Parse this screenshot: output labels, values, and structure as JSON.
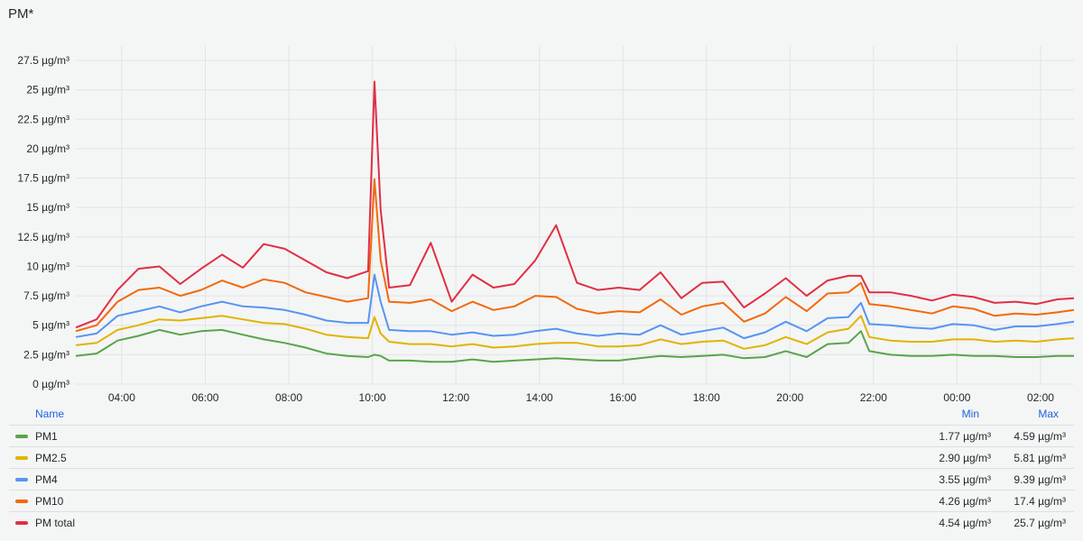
{
  "panel": {
    "title": "PM*"
  },
  "legend": {
    "header": {
      "name": "Name",
      "min": "Min",
      "max": "Max"
    },
    "rows": [
      {
        "label": "PM1",
        "color": "#56a64b",
        "min": "1.77 µg/m³",
        "max": "4.59 µg/m³"
      },
      {
        "label": "PM2.5",
        "color": "#e0b400",
        "min": "2.90 µg/m³",
        "max": "5.81 µg/m³"
      },
      {
        "label": "PM4",
        "color": "#5794f2",
        "min": "3.55 µg/m³",
        "max": "9.39 µg/m³"
      },
      {
        "label": "PM10",
        "color": "#f2690a",
        "min": "4.26 µg/m³",
        "max": "17.4 µg/m³"
      },
      {
        "label": "PM total",
        "color": "#e02f44",
        "min": "4.54 µg/m³",
        "max": "25.7 µg/m³"
      }
    ]
  },
  "chart_data": {
    "type": "line",
    "title": "PM*",
    "xlabel": "",
    "ylabel": "",
    "y_unit": "µg/m³",
    "ylim": [
      0,
      27.5
    ],
    "yticks": [
      "0 µg/m³",
      "2.5 µg/m³",
      "5 µg/m³",
      "7.5 µg/m³",
      "10 µg/m³",
      "12.5 µg/m³",
      "15 µg/m³",
      "17.5 µg/m³",
      "20 µg/m³",
      "22.5 µg/m³",
      "25 µg/m³",
      "27.5 µg/m³"
    ],
    "xlim": [
      2.9,
      26.8
    ],
    "xticks": [
      "04:00",
      "06:00",
      "08:00",
      "10:00",
      "12:00",
      "14:00",
      "16:00",
      "18:00",
      "20:00",
      "22:00",
      "00:00",
      "02:00"
    ],
    "grid": true,
    "legend": "bottom",
    "x": [
      2.9,
      3.4,
      3.9,
      4.4,
      4.9,
      5.4,
      5.9,
      6.4,
      6.9,
      7.4,
      7.9,
      8.4,
      8.9,
      9.4,
      9.9,
      10.05,
      10.2,
      10.4,
      10.9,
      11.4,
      11.9,
      12.4,
      12.9,
      13.4,
      13.9,
      14.4,
      14.9,
      15.4,
      15.9,
      16.4,
      16.9,
      17.4,
      17.9,
      18.4,
      18.9,
      19.4,
      19.9,
      20.4,
      20.9,
      21.4,
      21.7,
      21.9,
      22.4,
      22.9,
      23.4,
      23.9,
      24.4,
      24.9,
      25.4,
      25.9,
      26.4,
      26.8
    ],
    "series": [
      {
        "name": "PM1",
        "color": "#56a64b",
        "values": [
          2.4,
          2.6,
          3.7,
          4.1,
          4.6,
          4.2,
          4.5,
          4.6,
          4.2,
          3.8,
          3.5,
          3.1,
          2.6,
          2.4,
          2.3,
          2.5,
          2.4,
          2.0,
          2.0,
          1.9,
          1.9,
          2.1,
          1.9,
          2.0,
          2.1,
          2.2,
          2.1,
          2.0,
          2.0,
          2.2,
          2.4,
          2.3,
          2.4,
          2.5,
          2.2,
          2.3,
          2.8,
          2.3,
          3.4,
          3.5,
          4.5,
          2.8,
          2.5,
          2.4,
          2.4,
          2.5,
          2.4,
          2.4,
          2.3,
          2.3,
          2.4,
          2.4
        ]
      },
      {
        "name": "PM2.5",
        "color": "#e0b400",
        "values": [
          3.3,
          3.5,
          4.6,
          5.0,
          5.5,
          5.4,
          5.6,
          5.8,
          5.5,
          5.2,
          5.1,
          4.7,
          4.2,
          4.0,
          3.9,
          5.7,
          4.3,
          3.6,
          3.4,
          3.4,
          3.2,
          3.4,
          3.1,
          3.2,
          3.4,
          3.5,
          3.5,
          3.2,
          3.2,
          3.3,
          3.8,
          3.4,
          3.6,
          3.7,
          3.0,
          3.3,
          4.0,
          3.4,
          4.4,
          4.7,
          5.8,
          4.0,
          3.7,
          3.6,
          3.6,
          3.8,
          3.8,
          3.6,
          3.7,
          3.6,
          3.8,
          3.9
        ]
      },
      {
        "name": "PM4",
        "color": "#5794f2",
        "values": [
          4.0,
          4.3,
          5.8,
          6.2,
          6.6,
          6.1,
          6.6,
          7.0,
          6.6,
          6.5,
          6.3,
          5.9,
          5.4,
          5.2,
          5.2,
          9.3,
          7.0,
          4.6,
          4.5,
          4.5,
          4.2,
          4.4,
          4.1,
          4.2,
          4.5,
          4.7,
          4.3,
          4.1,
          4.3,
          4.2,
          5.0,
          4.2,
          4.5,
          4.8,
          3.9,
          4.4,
          5.3,
          4.5,
          5.6,
          5.7,
          6.9,
          5.1,
          5.0,
          4.8,
          4.7,
          5.1,
          5.0,
          4.6,
          4.9,
          4.9,
          5.1,
          5.3
        ]
      },
      {
        "name": "PM10",
        "color": "#f2690a",
        "values": [
          4.5,
          5.0,
          7.0,
          8.0,
          8.2,
          7.5,
          8.0,
          8.8,
          8.2,
          8.9,
          8.6,
          7.8,
          7.4,
          7.0,
          7.3,
          17.4,
          10.5,
          7.0,
          6.9,
          7.2,
          6.2,
          7.0,
          6.3,
          6.6,
          7.5,
          7.4,
          6.4,
          6.0,
          6.2,
          6.1,
          7.2,
          5.9,
          6.6,
          6.9,
          5.3,
          6.0,
          7.4,
          6.2,
          7.7,
          7.8,
          8.6,
          6.8,
          6.6,
          6.3,
          6.0,
          6.6,
          6.4,
          5.8,
          6.0,
          5.9,
          6.1,
          6.3
        ]
      },
      {
        "name": "PM total",
        "color": "#e02f44",
        "values": [
          4.8,
          5.5,
          8.0,
          9.8,
          10.0,
          8.5,
          9.8,
          11.0,
          9.9,
          11.9,
          11.5,
          10.5,
          9.5,
          9.0,
          9.6,
          25.7,
          14.8,
          8.2,
          8.4,
          12.0,
          7.0,
          9.3,
          8.2,
          8.5,
          10.5,
          13.5,
          8.6,
          8.0,
          8.2,
          8.0,
          9.5,
          7.3,
          8.6,
          8.7,
          6.5,
          7.7,
          9.0,
          7.5,
          8.8,
          9.2,
          9.2,
          7.8,
          7.8,
          7.5,
          7.1,
          7.6,
          7.4,
          6.9,
          7.0,
          6.8,
          7.2,
          7.3
        ]
      }
    ]
  }
}
